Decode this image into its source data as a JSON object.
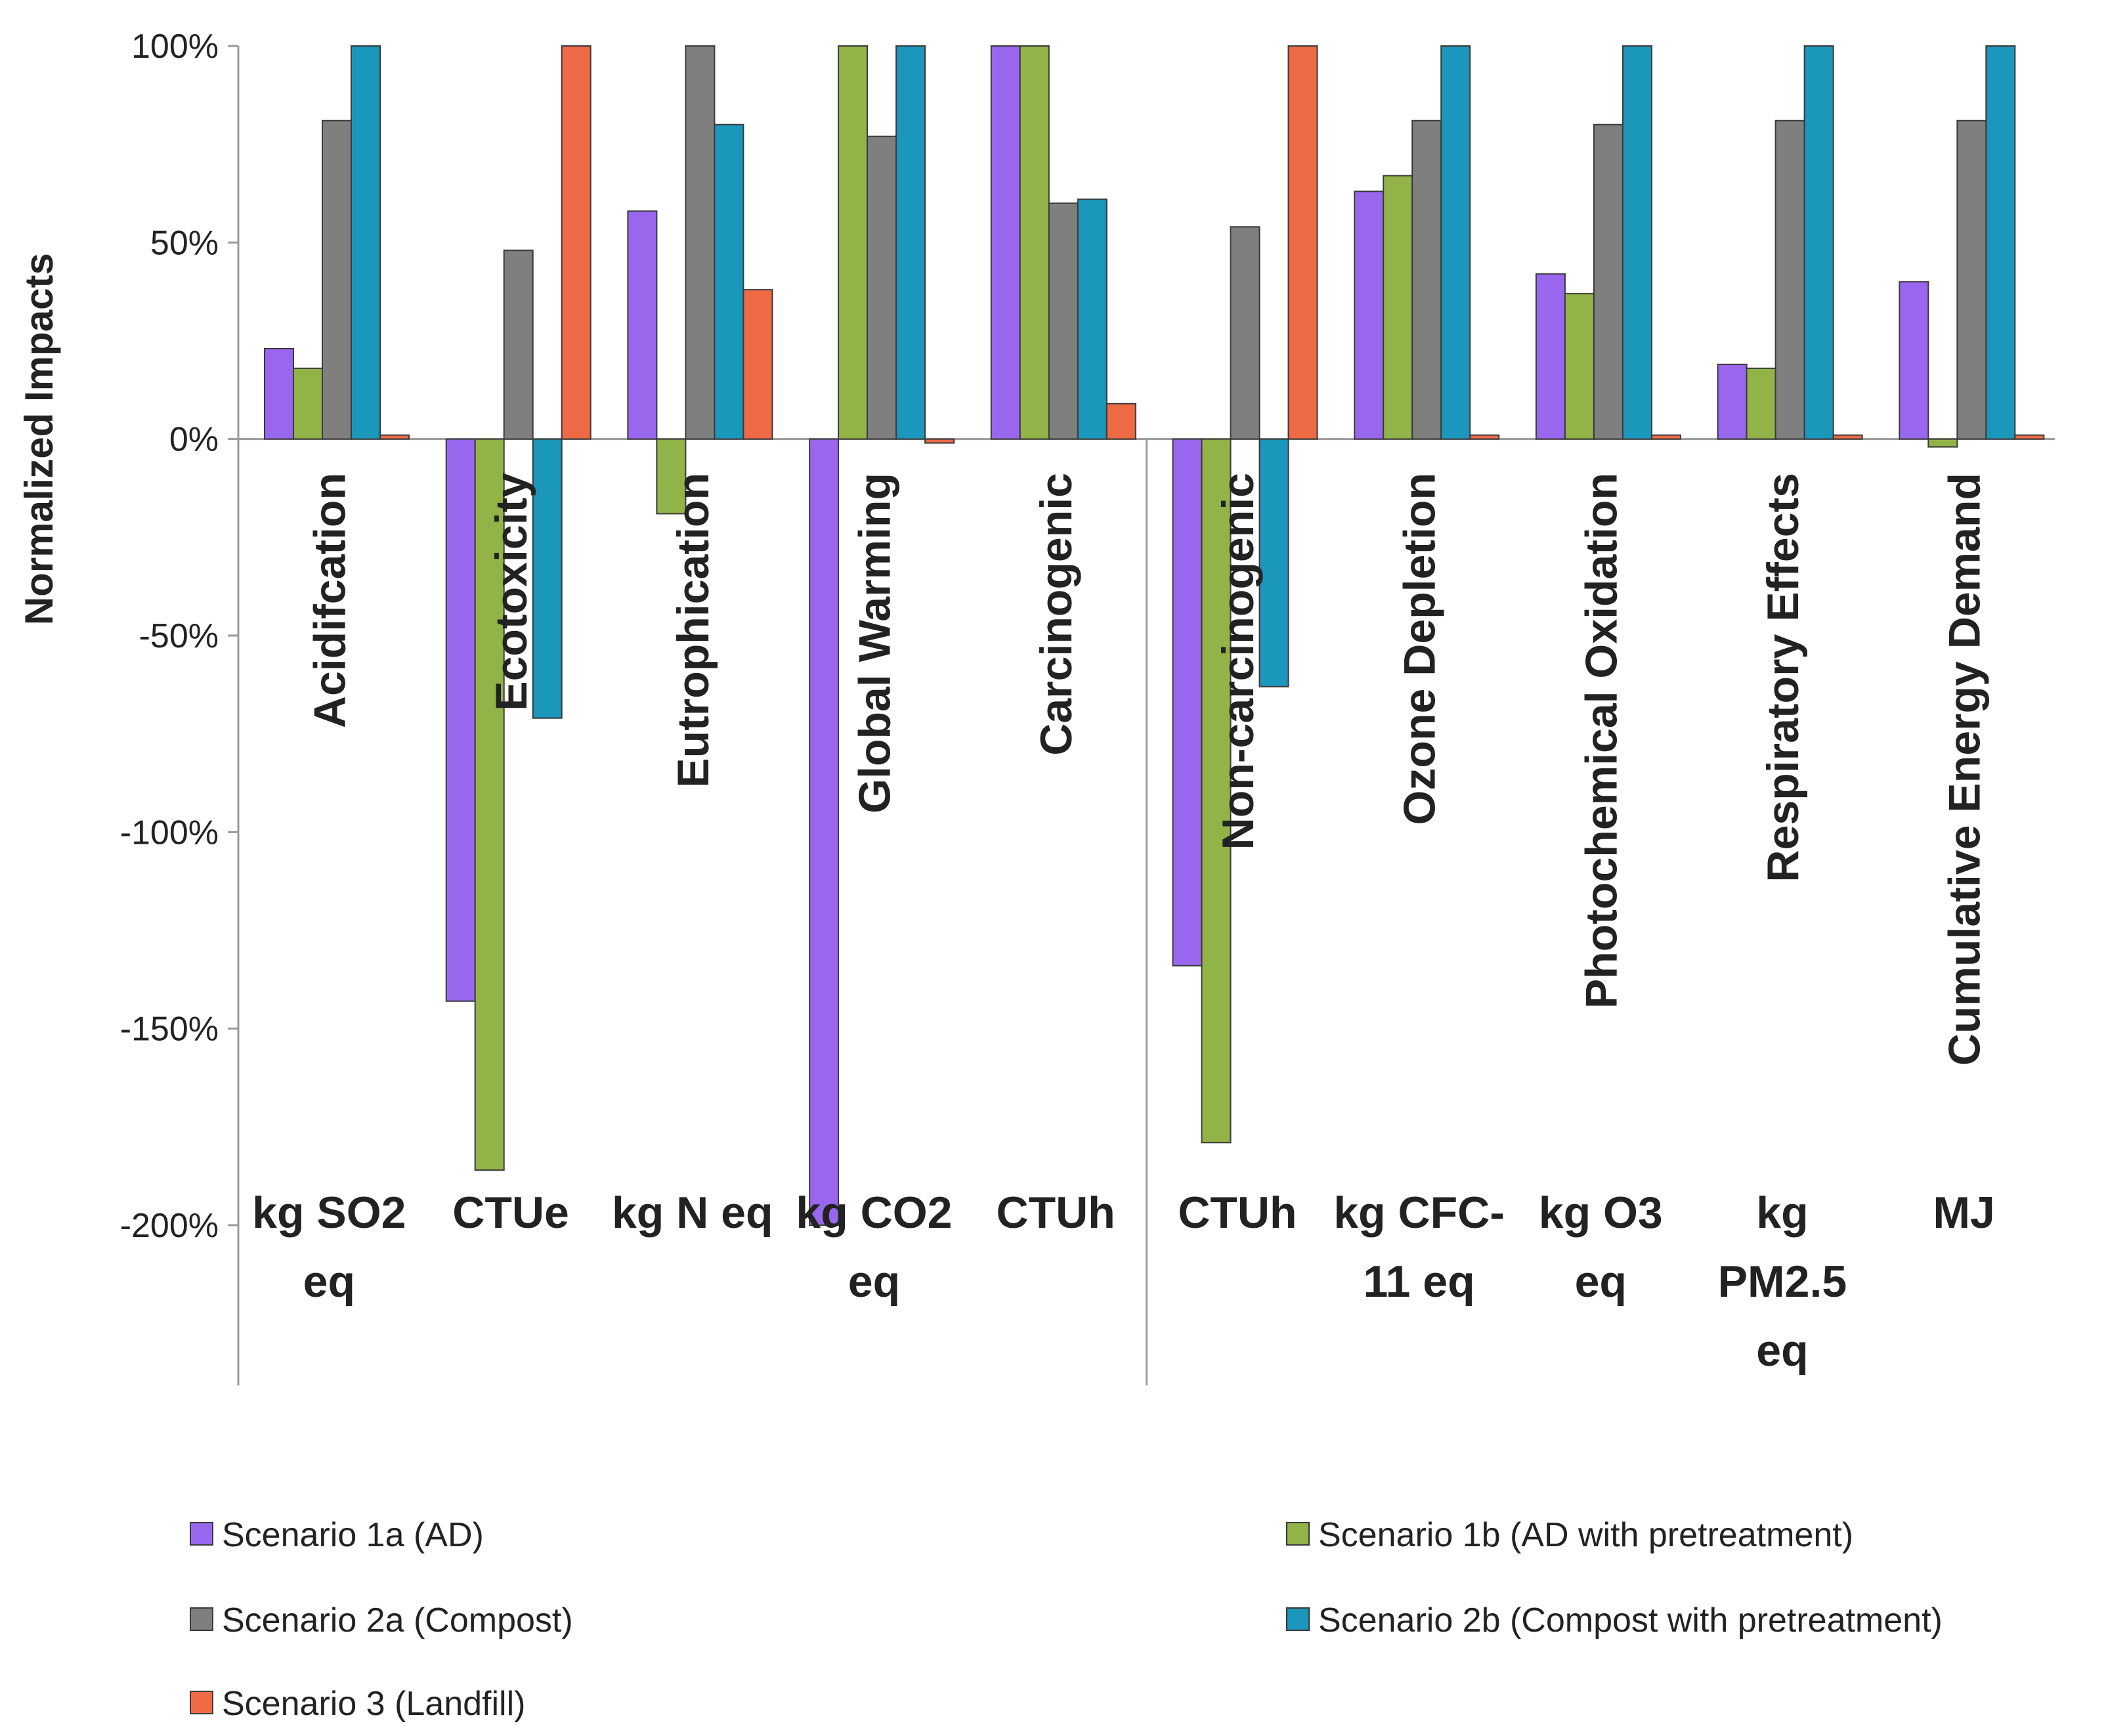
{
  "chart_data": {
    "type": "bar",
    "ylabel": "Normalized Impacts",
    "ylim": [
      -200,
      100
    ],
    "yticks": [
      "100%",
      "50%",
      "0%",
      "-50%",
      "-100%",
      "-150%",
      "-200%"
    ],
    "ytick_values": [
      100,
      50,
      0,
      -50,
      -100,
      -150,
      -200
    ],
    "categories": [
      "Acidifcation",
      "Ecotoxicity",
      "Eutrophication",
      "Global Warming",
      "Carcinogenic",
      "Non-carcinogenic",
      "Ozone Depletion",
      "Photochemical Oxidation",
      "Respiratory Effects",
      "Cumulative Energy Demand"
    ],
    "units": [
      [
        "kg SO2",
        "eq"
      ],
      [
        "CTUe"
      ],
      [
        "kg N  eq"
      ],
      [
        "kg CO2",
        "eq"
      ],
      [
        "CTUh"
      ],
      [
        "CTUh"
      ],
      [
        "kg CFC-",
        "11 eq"
      ],
      [
        "kg O3",
        "eq"
      ],
      [
        "kg",
        "PM2.5",
        "eq"
      ],
      [
        "MJ"
      ]
    ],
    "series": [
      {
        "name": "Scenario 1a (AD)",
        "color": "#9966ee",
        "values": [
          23,
          -143,
          58,
          -200,
          100,
          -134,
          63,
          42,
          19,
          40
        ]
      },
      {
        "name": "Scenario 1b (AD with pretreatment)",
        "color": "#92b347",
        "values": [
          18,
          -186,
          -19,
          100,
          100,
          -179,
          67,
          37,
          18,
          -2
        ]
      },
      {
        "name": "Scenario 2a (Compost)",
        "color": "#7f7f7f",
        "values": [
          81,
          48,
          100,
          77,
          60,
          54,
          81,
          80,
          81,
          81
        ]
      },
      {
        "name": "Scenario 2b (Compost with pretreatment)",
        "color": "#1b97bb",
        "values": [
          100,
          -71,
          80,
          100,
          61,
          -63,
          100,
          100,
          100,
          100
        ]
      },
      {
        "name": "Scenario 3 (Landfill)",
        "color": "#ee6a45",
        "values": [
          1,
          100,
          38,
          -1,
          9,
          100,
          1,
          1,
          1,
          1
        ]
      }
    ]
  }
}
